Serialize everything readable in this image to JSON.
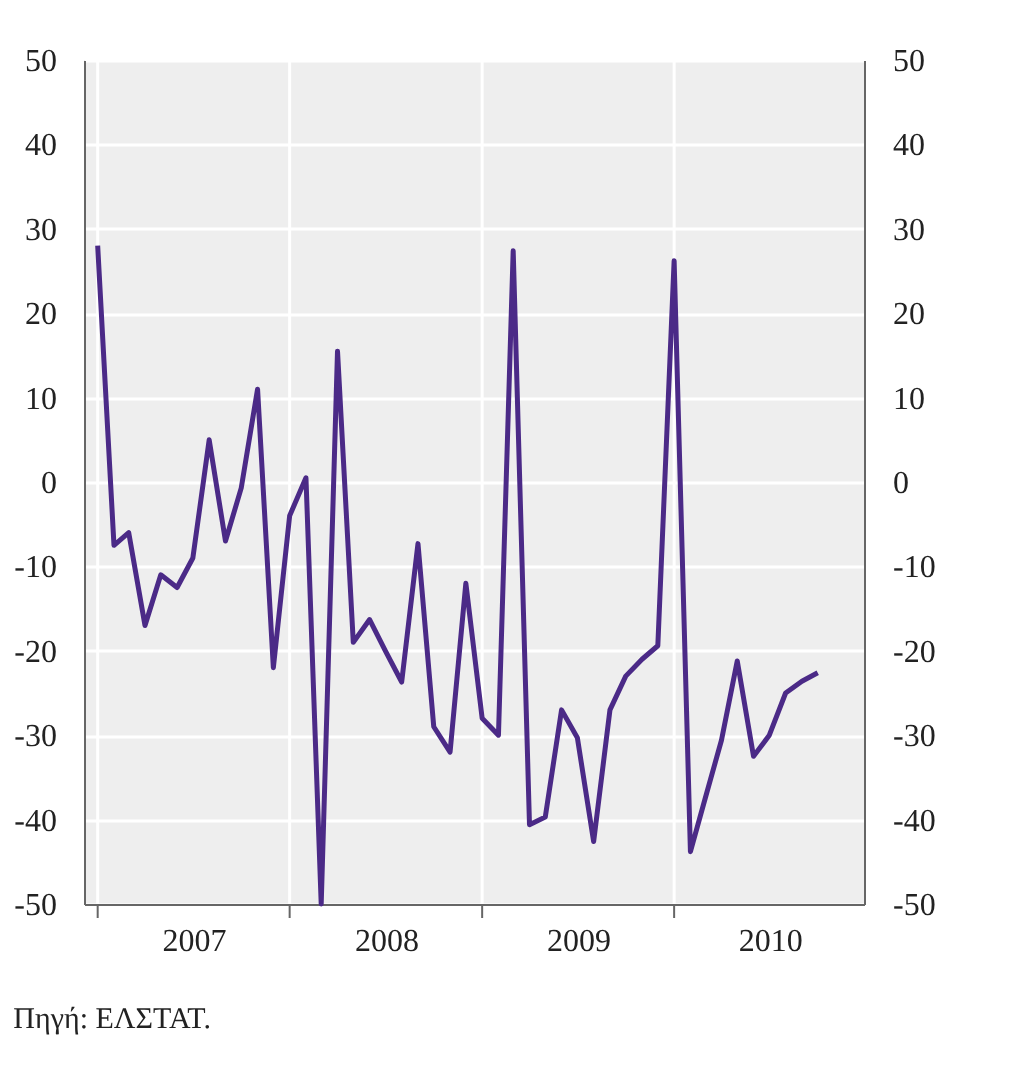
{
  "chart_data": {
    "type": "line",
    "x": [
      "2007-01",
      "2007-02",
      "2007-03",
      "2007-04",
      "2007-05",
      "2007-06",
      "2007-07",
      "2007-08",
      "2007-09",
      "2007-10",
      "2007-11",
      "2007-12",
      "2008-01",
      "2008-02",
      "2008-03",
      "2008-04",
      "2008-05",
      "2008-06",
      "2008-07",
      "2008-08",
      "2008-09",
      "2008-10",
      "2008-11",
      "2008-12",
      "2009-01",
      "2009-02",
      "2009-03",
      "2009-04",
      "2009-05",
      "2009-06",
      "2009-07",
      "2009-08",
      "2009-09",
      "2009-10",
      "2009-11",
      "2009-12",
      "2010-01",
      "2010-02",
      "2010-03",
      "2010-04",
      "2010-05",
      "2010-06",
      "2010-07",
      "2010-08",
      "2010-09",
      "2010-10"
    ],
    "series": [
      {
        "color": "#4b2a87",
        "values": [
          28,
          -7.5,
          -6,
          -17,
          -11,
          -12.5,
          -9,
          5,
          -7,
          -0.7,
          11,
          -22,
          -4,
          0.5,
          -50,
          15.5,
          -19,
          -16.3,
          -20,
          -23.7,
          -7.3,
          -29,
          -32,
          -12,
          -28,
          -30,
          27.4,
          -40.6,
          -39.7,
          -27,
          -30.3,
          -42.6,
          -27,
          -23,
          -21,
          -19.4,
          26.2,
          -43.8,
          -37.5,
          -30.6,
          -21.2,
          -32.5,
          -30,
          -25,
          -23.6,
          -22.6
        ]
      }
    ],
    "xlim": [
      "2006-12-06",
      "2010-12-28"
    ],
    "xticks": [
      {
        "value": "2007-01-01",
        "label": null
      },
      {
        "value": "2007-07-02",
        "label": "2007"
      },
      {
        "value": "2008-01-01",
        "label": null
      },
      {
        "value": "2008-07-02",
        "label": "2008"
      },
      {
        "value": "2009-01-01",
        "label": null
      },
      {
        "value": "2009-07-02",
        "label": "2009"
      },
      {
        "value": "2010-01-01",
        "label": null
      },
      {
        "value": "2010-07-02",
        "label": "2010"
      }
    ],
    "ylim": [
      -50,
      50
    ],
    "yticks": [
      -50,
      -40,
      -30,
      -20,
      -10,
      0,
      10,
      20,
      30,
      40,
      50
    ],
    "y2lim": [
      -50,
      50
    ],
    "y2ticks": [
      -50,
      -40,
      -30,
      -20,
      -10,
      0,
      10,
      20,
      30,
      40,
      50
    ],
    "grid": true,
    "line_style": "solid",
    "marker": "none",
    "legend": false,
    "annotations": [
      "Πηγή: ΕΛΣΤΑΤ."
    ]
  }
}
